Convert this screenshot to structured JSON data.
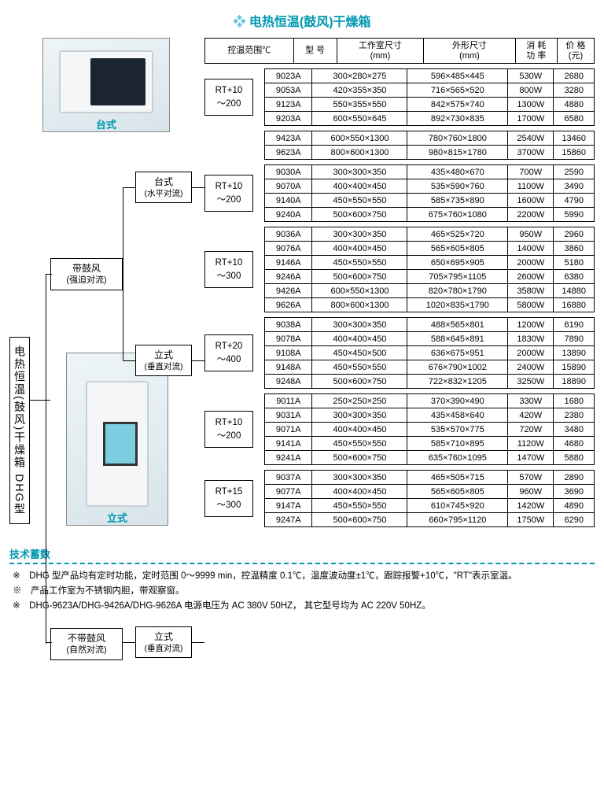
{
  "colors": {
    "accent": "#0097b2",
    "border": "#000000",
    "bg": "#ffffff"
  },
  "title": "电热恒温(鼓风)干燥箱",
  "root": {
    "label": "电热恒温(鼓风)干燥箱 DHG型"
  },
  "branch_fan": {
    "label": "带鼓风",
    "sub": "(强迫对流)"
  },
  "branch_nofan": {
    "label": "不带鼓风",
    "sub": "(自然对流)"
  },
  "mid": {
    "desk": {
      "label": "台式",
      "sub": "(水平对流)"
    },
    "stand1": {
      "label": "立式",
      "sub": "(垂直对流)"
    },
    "stand2": {
      "label": "立式",
      "sub": "(垂直对流)"
    }
  },
  "photo": {
    "desk": "台式",
    "stand": "立式"
  },
  "header": {
    "c1": "控温范围℃",
    "c2": "型 号",
    "c3": "工作室尺寸",
    "c3u": "(mm)",
    "c4": "外形尺寸",
    "c4u": "(mm)",
    "c5": "消 耗",
    "c5u": "功 率",
    "c6": "价 格",
    "c6u": "(元)"
  },
  "groups": [
    {
      "range": "RT+10\n～200",
      "rows": [
        [
          "9023A",
          "300×280×275",
          "596×485×445",
          "530W",
          "2680"
        ],
        [
          "9053A",
          "420×355×350",
          "716×565×520",
          "800W",
          "3280"
        ],
        [
          "9123A",
          "550×355×550",
          "842×575×740",
          "1300W",
          "4880"
        ],
        [
          "9203A",
          "600×550×645",
          "892×730×835",
          "1700W",
          "6580"
        ]
      ]
    },
    {
      "range": "",
      "rows": [
        [
          "9423A",
          "600×550×1300",
          "780×760×1800",
          "2540W",
          "13460"
        ],
        [
          "9623A",
          "800×600×1300",
          "980×815×1780",
          "3700W",
          "15860"
        ]
      ]
    },
    {
      "range": "RT+10\n～200",
      "rows": [
        [
          "9030A",
          "300×300×350",
          "435×480×670",
          "700W",
          "2590"
        ],
        [
          "9070A",
          "400×400×450",
          "535×590×760",
          "1100W",
          "3490"
        ],
        [
          "9140A",
          "450×550×550",
          "585×735×890",
          "1600W",
          "4790"
        ],
        [
          "9240A",
          "500×600×750",
          "675×760×1080",
          "2200W",
          "5990"
        ]
      ]
    },
    {
      "range": "RT+10\n～300",
      "rows": [
        [
          "9036A",
          "300×300×350",
          "465×525×720",
          "950W",
          "2960"
        ],
        [
          "9076A",
          "400×400×450",
          "565×605×805",
          "1400W",
          "3860"
        ],
        [
          "9146A",
          "450×550×550",
          "650×695×905",
          "2000W",
          "5180"
        ],
        [
          "9246A",
          "500×600×750",
          "705×795×1105",
          "2600W",
          "6380"
        ],
        [
          "9426A",
          "600×550×1300",
          "820×780×1790",
          "3580W",
          "14880"
        ],
        [
          "9626A",
          "800×600×1300",
          "1020×835×1790",
          "5800W",
          "16880"
        ]
      ]
    },
    {
      "range": "RT+20\n～400",
      "rows": [
        [
          "9038A",
          "300×300×350",
          "488×565×801",
          "1200W",
          "6190"
        ],
        [
          "9078A",
          "400×400×450",
          "588×645×891",
          "1830W",
          "7890"
        ],
        [
          "9108A",
          "450×450×500",
          "636×675×951",
          "2000W",
          "13890"
        ],
        [
          "9148A",
          "450×550×550",
          "676×790×1002",
          "2400W",
          "15890"
        ],
        [
          "9248A",
          "500×600×750",
          "722×832×1205",
          "3250W",
          "18890"
        ]
      ]
    },
    {
      "range": "RT+10\n～200",
      "rows": [
        [
          "9011A",
          "250×250×250",
          "370×390×490",
          "330W",
          "1680"
        ],
        [
          "9031A",
          "300×300×350",
          "435×458×640",
          "420W",
          "2380"
        ],
        [
          "9071A",
          "400×400×450",
          "535×570×775",
          "720W",
          "3480"
        ],
        [
          "9141A",
          "450×550×550",
          "585×710×895",
          "1120W",
          "4680"
        ],
        [
          "9241A",
          "500×600×750",
          "635×760×1095",
          "1470W",
          "5880"
        ]
      ]
    },
    {
      "range": "RT+15\n～300",
      "rows": [
        [
          "9037A",
          "300×300×350",
          "465×505×715",
          "570W",
          "2890"
        ],
        [
          "9077A",
          "400×400×450",
          "565×605×805",
          "960W",
          "3690"
        ],
        [
          "9147A",
          "450×550×550",
          "610×745×920",
          "1420W",
          "4890"
        ],
        [
          "9247A",
          "500×600×750",
          "660×795×1120",
          "1750W",
          "6290"
        ]
      ]
    }
  ],
  "footer": {
    "h": "技术蓄数",
    "lines": [
      "※　DHG 型产品均有定时功能，定时范围 0～9999 min，控温精度 0.1℃，温度波动度±1℃，跟踪报警+10℃，\"RT\"表示室温。",
      "※　产品工作室为不锈钢内胆，带观察窗。",
      "※　DHG-9623A/DHG-9426A/DHG-9626A 电源电压为 AC 380V 50HZ， 其它型号均为 AC 220V 50HZ。"
    ]
  }
}
